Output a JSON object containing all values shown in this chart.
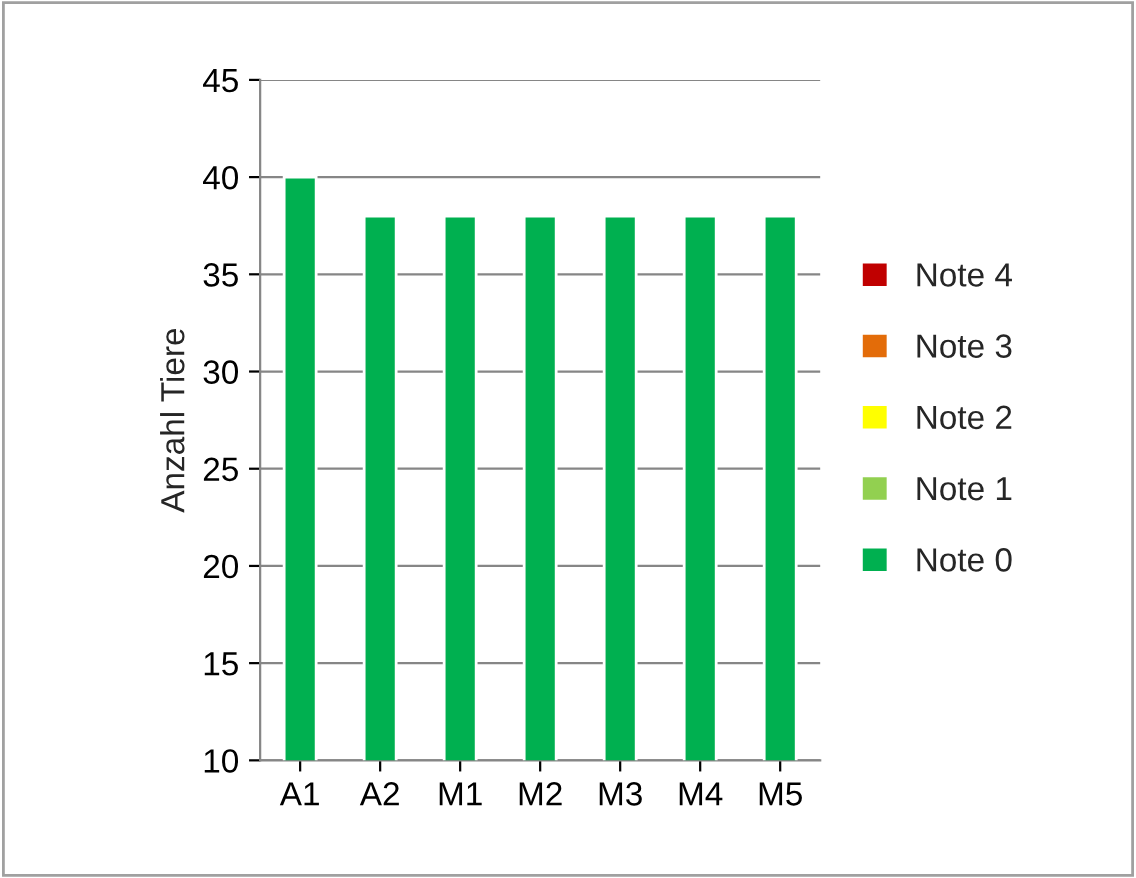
{
  "chart_data": {
    "type": "bar",
    "stacked": true,
    "ylabel": "Anzahl Tiere",
    "categories": [
      "A1",
      "A2",
      "M1",
      "M2",
      "M3",
      "M4",
      "M5"
    ],
    "series": [
      {
        "name": "Note 0",
        "color": "#00b050",
        "values": [
          40,
          38,
          38,
          38,
          38,
          38,
          38
        ]
      },
      {
        "name": "Note 1",
        "color": "#92d050",
        "values": [
          null,
          null,
          null,
          null,
          null,
          null,
          null
        ]
      },
      {
        "name": "Note 2",
        "color": "#ffff00",
        "values": [
          null,
          null,
          null,
          null,
          null,
          null,
          null
        ]
      },
      {
        "name": "Note 3",
        "color": "#e36c09",
        "values": [
          null,
          null,
          null,
          null,
          null,
          null,
          null
        ]
      },
      {
        "name": "Note 4",
        "color": "#c00000",
        "values": [
          null,
          null,
          null,
          null,
          null,
          null,
          null
        ]
      }
    ],
    "ylim": [
      10,
      45
    ],
    "yticks": [
      10,
      15,
      20,
      25,
      30,
      35,
      40,
      45
    ],
    "grid": "y",
    "legend": "right"
  }
}
